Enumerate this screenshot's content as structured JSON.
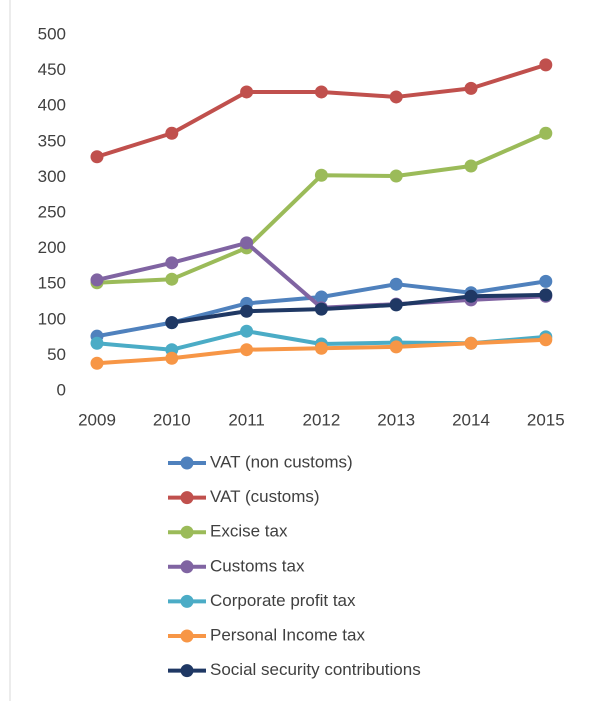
{
  "chart_data": {
    "type": "line",
    "categories": [
      "2009",
      "2010",
      "2011",
      "2012",
      "2013",
      "2014",
      "2015"
    ],
    "series": [
      {
        "name": "VAT (non customs)",
        "color": "#4f81bd",
        "values": [
          77,
          96,
          123,
          132,
          150,
          138,
          154
        ]
      },
      {
        "name": "VAT (customs)",
        "color": "#c0504d",
        "values": [
          329,
          362,
          420,
          420,
          413,
          425,
          458
        ]
      },
      {
        "name": "Excise tax",
        "color": "#9bbb59",
        "values": [
          152,
          157,
          201,
          303,
          302,
          316,
          362
        ]
      },
      {
        "name": "Customs tax",
        "color": "#8064a2",
        "values": [
          156,
          180,
          208,
          117,
          122,
          128,
          133
        ]
      },
      {
        "name": "Corporate profit tax",
        "color": "#4bacc6",
        "values": [
          67,
          58,
          84,
          66,
          68,
          67,
          76
        ]
      },
      {
        "name": "Personal Income tax",
        "color": "#f79646",
        "values": [
          39,
          46,
          58,
          60,
          62,
          67,
          72
        ]
      },
      {
        "name": "Social security contributions",
        "color": "#1f3864",
        "values": [
          null,
          96,
          112,
          115,
          121,
          133,
          135
        ]
      }
    ],
    "ylim": [
      0,
      500
    ],
    "yticks": [
      0,
      50,
      100,
      150,
      200,
      250,
      300,
      350,
      400,
      450,
      500
    ],
    "grid": false,
    "legend": "bottom"
  }
}
